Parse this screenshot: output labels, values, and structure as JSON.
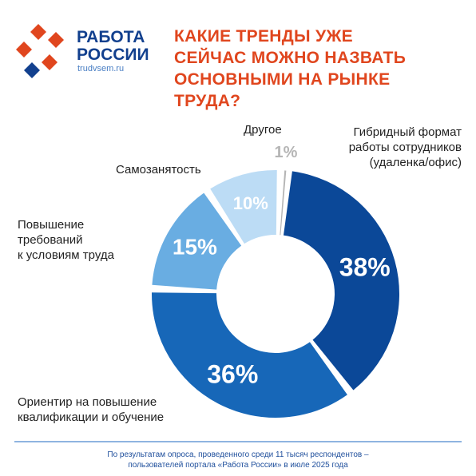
{
  "header": {
    "logo_line1": "РАБОТА",
    "logo_line2": "РОССИИ",
    "logo_url": "trudvsem.ru"
  },
  "chart_data": {
    "type": "donut",
    "title": "КАКИЕ ТРЕНДЫ УЖЕ\nСЕЙЧАС МОЖНО НАЗВАТЬ\nОСНОВНЫМИ НА РЫНКЕ\nТРУДА?",
    "categories": [
      "Гибридный формат\nработы сотрудников\n(удаленка/офис)",
      "Ориентир на повышение\nквалификации и обучение",
      "Повышение\nтребований\nк условиям труда",
      "Самозанятость",
      "Другое"
    ],
    "values": [
      38,
      36,
      15,
      10,
      1
    ],
    "value_labels": [
      "38%",
      "36%",
      "15%",
      "10%",
      "1%"
    ],
    "colors": [
      "#0b4898",
      "#1767b8",
      "#69ade2",
      "#bcdcf5",
      "#b5b5b5"
    ],
    "note": "По результатам опроса, проведенного среди 11 тысяч респондентов –\nпользователей портала «Работа России» в июле 2025 года"
  }
}
